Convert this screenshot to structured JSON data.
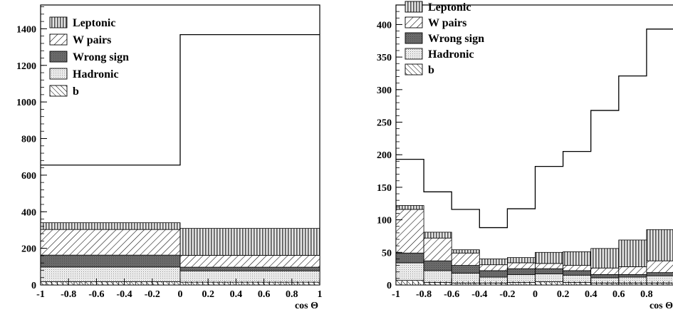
{
  "chart_data": [
    {
      "type": "stacked-histogram",
      "x_edges": [
        -1,
        0,
        1
      ],
      "xlabel": "cos Θ",
      "ylabel": "",
      "xlim": [
        -1,
        1
      ],
      "ylim": [
        0,
        1530
      ],
      "x_ticks": [
        -1,
        -0.8,
        -0.6,
        -0.4,
        -0.2,
        0,
        0.2,
        0.4,
        0.6,
        0.8,
        1
      ],
      "x_tick_labels": [
        "-1",
        "-0.8",
        "-0.6",
        "-0.4",
        "-0.2",
        "0",
        "0.2",
        "0.4",
        "0.6",
        "0.8",
        "1"
      ],
      "y_ticks": [
        0,
        200,
        400,
        600,
        800,
        1000,
        1200,
        1400
      ],
      "y_tick_labels": [
        "0",
        "200",
        "400",
        "600",
        "800",
        "1000",
        "1200",
        "1400"
      ],
      "legend_position": "top-left",
      "data_total": [
        655,
        1368
      ],
      "stack": [
        {
          "name": "b",
          "pattern": "hatch-fwd",
          "values": [
            18,
            15
          ]
        },
        {
          "name": "Hadronic",
          "pattern": "dots",
          "values": [
            80,
            62
          ]
        },
        {
          "name": "Wrong sign",
          "pattern": "dark",
          "values": [
            65,
            20
          ]
        },
        {
          "name": "W pairs",
          "pattern": "hatch-back",
          "values": [
            140,
            65
          ]
        },
        {
          "name": "Leptonic",
          "pattern": "vstripes",
          "values": [
            37,
            147
          ]
        }
      ]
    },
    {
      "type": "stacked-histogram",
      "x_edges": [
        -1,
        -0.8,
        -0.6,
        -0.4,
        -0.2,
        0,
        0.2,
        0.4,
        0.6,
        0.8,
        1
      ],
      "xlabel": "cos Θ",
      "ylabel": "",
      "xlim": [
        -1,
        1
      ],
      "ylim": [
        0,
        430
      ],
      "x_ticks": [
        -1,
        -0.8,
        -0.6,
        -0.4,
        -0.2,
        0,
        0.2,
        0.4,
        0.6,
        0.8
      ],
      "x_tick_labels": [
        "-1",
        "-0.8",
        "-0.6",
        "-0.4",
        "-0.2",
        "0",
        "0.2",
        "0.4",
        "0.6",
        "0.8"
      ],
      "y_ticks": [
        0,
        50,
        100,
        150,
        200,
        250,
        300,
        350,
        400
      ],
      "y_tick_labels": [
        "0",
        "50",
        "100",
        "150",
        "200",
        "250",
        "300",
        "350",
        "400"
      ],
      "legend_position": "top-left",
      "data_total": [
        193,
        143,
        116,
        88,
        117,
        182,
        205,
        268,
        321,
        393
      ],
      "stack": [
        {
          "name": "b",
          "pattern": "hatch-fwd",
          "values": [
            7,
            4,
            3,
            3,
            4,
            5,
            4,
            3,
            3,
            3
          ]
        },
        {
          "name": "Hadronic",
          "pattern": "dots",
          "values": [
            27,
            18,
            15,
            9,
            12,
            12,
            11,
            8,
            9,
            11
          ]
        },
        {
          "name": "Wrong sign",
          "pattern": "dark",
          "values": [
            15,
            15,
            12,
            10,
            9,
            8,
            7,
            5,
            4,
            5
          ]
        },
        {
          "name": "W pairs",
          "pattern": "hatch-back",
          "values": [
            67,
            35,
            19,
            9,
            9,
            8,
            8,
            10,
            12,
            18
          ]
        },
        {
          "name": "Leptonic",
          "pattern": "vstripes",
          "values": [
            6,
            9,
            5,
            9,
            8,
            17,
            21,
            30,
            41,
            48
          ]
        }
      ]
    }
  ]
}
